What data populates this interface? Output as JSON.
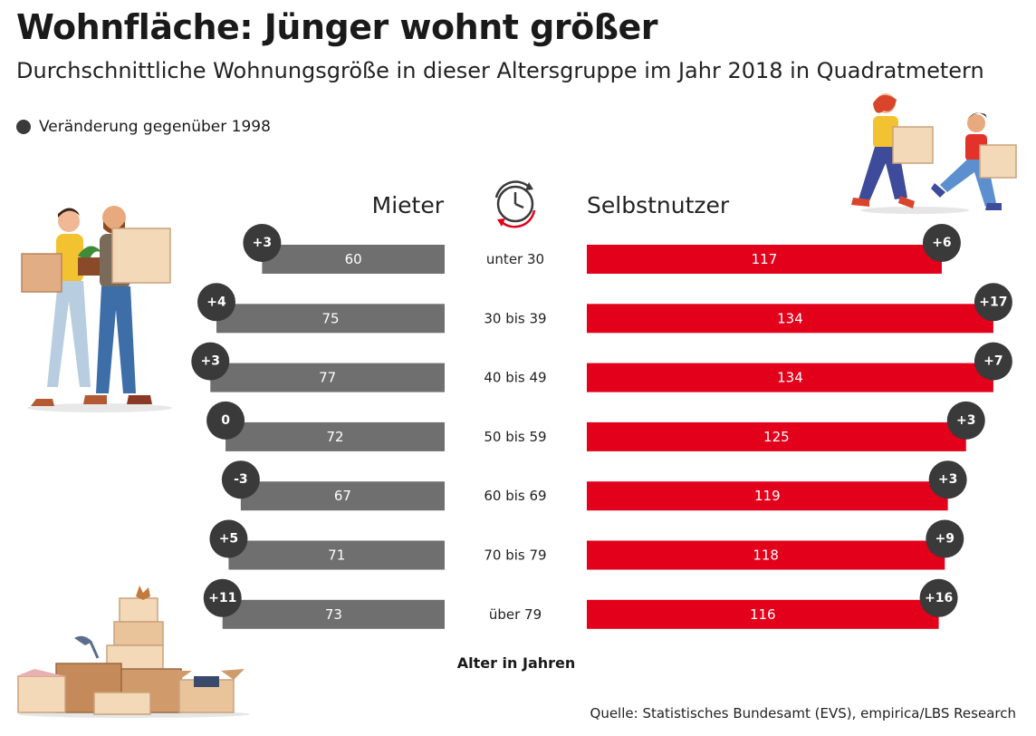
{
  "title": "Wohnfläche: Jünger wohnt größer",
  "subtitle": "Durchschnittliche Wohnungsgröße in dieser Altersgruppe im Jahr 2018 in Quadratmetern",
  "legend": {
    "label": "Veränderung gegenüber 1998",
    "color": "#3a3a3a"
  },
  "columns": {
    "left": "Mieter",
    "right": "Selbstnutzer"
  },
  "xlabel": "Alter in Jahren",
  "source": "Quelle: Statistisches Bundesamt (EVS), empirica/LBS Research",
  "colors": {
    "mieter": "#6f6f6f",
    "selbstnutzer": "#e2001a",
    "badge": "#3a3a3a"
  },
  "chart_data": {
    "type": "bar",
    "title": "Wohnfläche: Jünger wohnt größer",
    "xlabel": "Alter in Jahren",
    "ylabel": "",
    "categories": [
      "unter 30",
      "30 bis 39",
      "40 bis 49",
      "50 bis 59",
      "60 bis 69",
      "70 bis 79",
      "über 79"
    ],
    "series": [
      {
        "name": "Mieter",
        "values": [
          60,
          75,
          77,
          72,
          67,
          71,
          73
        ],
        "changes": [
          "+3",
          "+4",
          "+3",
          "0",
          "-3",
          "+5",
          "+11"
        ]
      },
      {
        "name": "Selbstnutzer",
        "values": [
          117,
          134,
          134,
          125,
          119,
          118,
          116
        ],
        "changes": [
          "+6",
          "+17",
          "+7",
          "+3",
          "+3",
          "+9",
          "+16"
        ]
      }
    ],
    "change_label": "Veränderung gegenüber 1998"
  }
}
